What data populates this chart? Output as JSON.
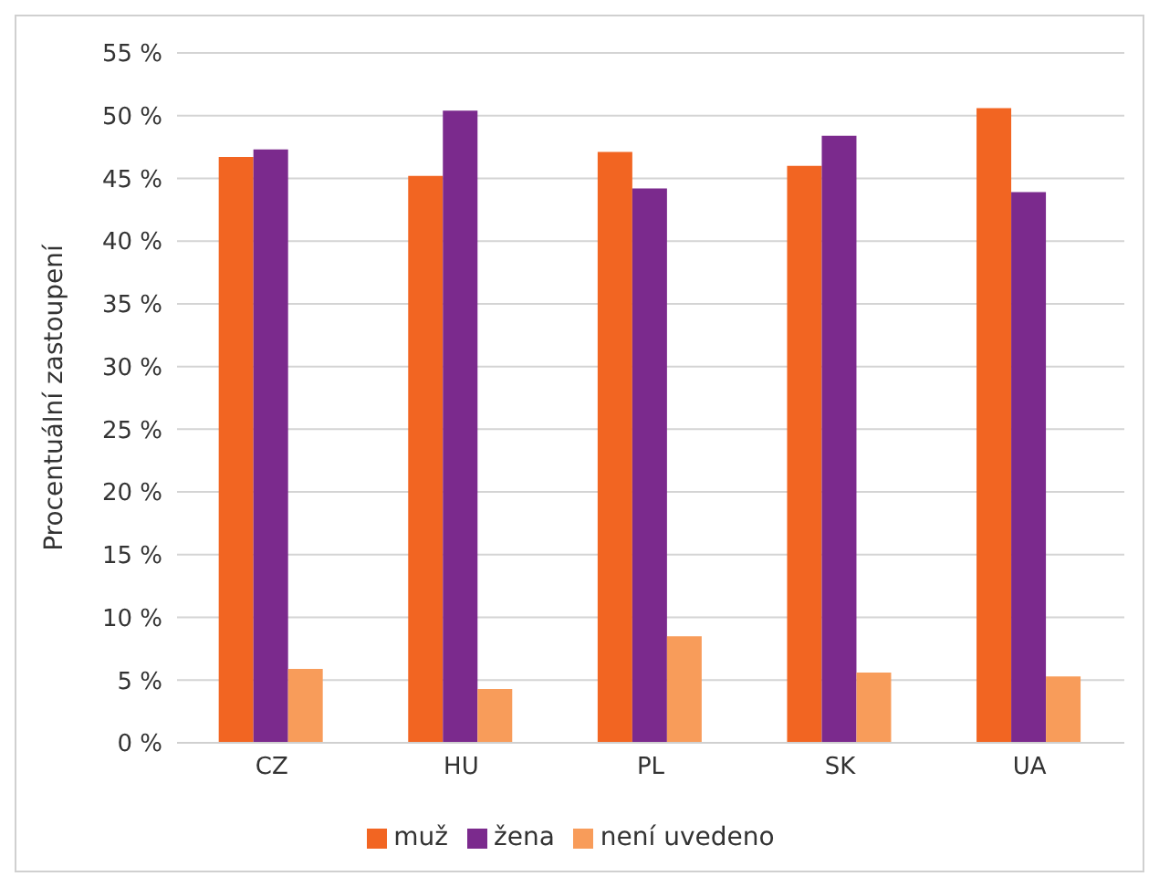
{
  "chart_data": {
    "type": "bar",
    "ylabel": "Procentuální zastoupení",
    "categories": [
      "CZ",
      "HU",
      "PL",
      "SK",
      "UA"
    ],
    "series": [
      {
        "name": "muž",
        "color": "#f26522",
        "values": [
          46.7,
          45.2,
          47.1,
          46.0,
          50.6
        ]
      },
      {
        "name": "žena",
        "color": "#7b2a8d",
        "values": [
          47.3,
          50.4,
          44.2,
          48.4,
          43.9
        ]
      },
      {
        "name": "není uvedeno",
        "color": "#f89c5a",
        "values": [
          5.9,
          4.3,
          8.5,
          5.6,
          5.3
        ]
      }
    ],
    "ylim": [
      0,
      55
    ],
    "yticks": [
      {
        "value": 0,
        "label": "0 %"
      },
      {
        "value": 5,
        "label": "5 %"
      },
      {
        "value": 10,
        "label": "10 %"
      },
      {
        "value": 15,
        "label": "15 %"
      },
      {
        "value": 20,
        "label": "20 %"
      },
      {
        "value": 25,
        "label": "25 %"
      },
      {
        "value": 30,
        "label": "30 %"
      },
      {
        "value": 35,
        "label": "35 %"
      },
      {
        "value": 40,
        "label": "40 %"
      },
      {
        "value": 45,
        "label": "45 %"
      },
      {
        "value": 50,
        "label": "50 %"
      },
      {
        "value": 55,
        "label": "55 %"
      }
    ],
    "grid": "y",
    "legend": "bottom"
  }
}
